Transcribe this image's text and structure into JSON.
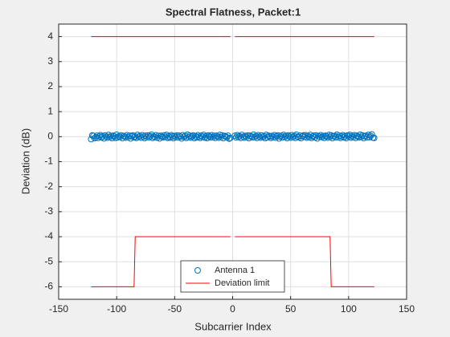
{
  "chart_data": {
    "type": "scatter",
    "title": "Spectral Flatness, Packet:1",
    "x_label": "Subcarrier Index",
    "y_label": "Deviation (dB)",
    "xlim": [
      -150,
      150
    ],
    "xticks": [
      -150,
      -100,
      -50,
      0,
      50,
      100,
      150
    ],
    "ylim": [
      -6.5,
      4.5
    ],
    "yticks": [
      -6,
      -5,
      -4,
      -3,
      -2,
      -1,
      0,
      1,
      2,
      3,
      4
    ],
    "grid": true,
    "legend_location": "south",
    "series": [
      {
        "name": "Antenna 1",
        "style": "marker",
        "color": "#0072bd",
        "x": [
          -122,
          -121,
          -120,
          -119,
          -118,
          -117,
          -116,
          -115,
          -114,
          -113,
          -112,
          -111,
          -110,
          -109,
          -108,
          -107,
          -106,
          -105,
          -104,
          -103,
          -102,
          -101,
          -100,
          -99,
          -98,
          -97,
          -96,
          -95,
          -94,
          -93,
          -92,
          -91,
          -90,
          -89,
          -88,
          -87,
          -86,
          -85,
          -84,
          -83,
          -82,
          -81,
          -80,
          -79,
          -78,
          -77,
          -76,
          -75,
          -74,
          -73,
          -72,
          -71,
          -70,
          -69,
          -68,
          -67,
          -66,
          -65,
          -64,
          -63,
          -62,
          -61,
          -60,
          -59,
          -58,
          -57,
          -56,
          -55,
          -54,
          -53,
          -52,
          -51,
          -50,
          -49,
          -48,
          -47,
          -46,
          -45,
          -44,
          -43,
          -42,
          -41,
          -40,
          -39,
          -38,
          -37,
          -36,
          -35,
          -34,
          -33,
          -32,
          -31,
          -30,
          -29,
          -28,
          -27,
          -26,
          -25,
          -24,
          -23,
          -22,
          -21,
          -20,
          -19,
          -18,
          -17,
          -16,
          -15,
          -14,
          -13,
          -12,
          -11,
          -10,
          -9,
          -8,
          -7,
          -6,
          -5,
          -4,
          -3,
          -2,
          2,
          3,
          4,
          5,
          6,
          7,
          8,
          9,
          10,
          11,
          12,
          13,
          14,
          15,
          16,
          17,
          18,
          19,
          20,
          21,
          22,
          23,
          24,
          25,
          26,
          27,
          28,
          29,
          30,
          31,
          32,
          33,
          34,
          35,
          36,
          37,
          38,
          39,
          40,
          41,
          42,
          43,
          44,
          45,
          46,
          47,
          48,
          49,
          50,
          51,
          52,
          53,
          54,
          55,
          56,
          57,
          58,
          59,
          60,
          61,
          62,
          63,
          64,
          65,
          66,
          67,
          68,
          69,
          70,
          71,
          72,
          73,
          74,
          75,
          76,
          77,
          78,
          79,
          80,
          81,
          82,
          83,
          84,
          85,
          86,
          87,
          88,
          89,
          90,
          91,
          92,
          93,
          94,
          95,
          96,
          97,
          98,
          99,
          100,
          101,
          102,
          103,
          104,
          105,
          106,
          107,
          108,
          109,
          110,
          111,
          112,
          113,
          114,
          115,
          116,
          117,
          118,
          119,
          120,
          121,
          122
        ],
        "values": [
          -0.1,
          0.05,
          0.03,
          -0.06,
          -0.02,
          0.04,
          -0.05,
          0.01,
          0.06,
          -0.03,
          0.02,
          -0.07,
          0.05,
          0.0,
          -0.04,
          0.07,
          -0.02,
          0.03,
          -0.06,
          0.04,
          0.01,
          -0.05,
          0.08,
          -0.03,
          0.02,
          -0.01,
          0.05,
          -0.06,
          0.03,
          0.0,
          -0.04,
          0.06,
          -0.02,
          0.04,
          -0.07,
          0.02,
          0.05,
          -0.03,
          0.01,
          -0.05,
          0.07,
          -0.01,
          0.03,
          -0.04,
          0.06,
          0.0,
          -0.06,
          0.04,
          -0.02,
          0.05,
          -0.03,
          0.02,
          0.08,
          -0.05,
          0.01,
          -0.02,
          0.06,
          -0.04,
          0.03,
          -0.07,
          0.04,
          0.0,
          -0.03,
          0.05,
          -0.01,
          0.07,
          -0.05,
          0.02,
          -0.04,
          0.06,
          0.01,
          -0.06,
          0.03,
          -0.02,
          0.05,
          -0.03,
          0.04,
          0.0,
          -0.07,
          0.06,
          -0.01,
          0.03,
          -0.05,
          0.08,
          -0.02,
          0.04,
          -0.04,
          0.01,
          0.05,
          -0.06,
          0.02,
          -0.03,
          0.06,
          0.0,
          -0.05,
          0.04,
          -0.01,
          0.07,
          -0.04,
          0.02,
          -0.06,
          0.05,
          0.01,
          -0.03,
          0.06,
          -0.02,
          0.03,
          -0.05,
          0.04,
          0.0,
          -0.04,
          0.07,
          -0.02,
          0.05,
          -0.06,
          0.03,
          0.01,
          -0.03,
          0.04,
          -0.08,
          -0.05,
          0.04,
          -0.03,
          0.06,
          -0.01,
          0.02,
          -0.05,
          0.07,
          0.0,
          -0.04,
          0.03,
          -0.02,
          0.05,
          -0.06,
          0.04,
          0.01,
          -0.03,
          0.08,
          -0.02,
          0.03,
          -0.05,
          0.06,
          0.0,
          -0.04,
          0.05,
          -0.01,
          0.02,
          -0.06,
          0.07,
          -0.03,
          0.04,
          0.01,
          -0.05,
          0.03,
          -0.02,
          0.06,
          -0.04,
          0.02,
          0.05,
          -0.07,
          0.0,
          0.04,
          -0.03,
          0.07,
          -0.01,
          0.03,
          -0.06,
          0.05,
          0.01,
          -0.04,
          0.06,
          -0.02,
          0.03,
          -0.05,
          0.08,
          0.0,
          -0.03,
          0.04,
          -0.06,
          0.02,
          0.05,
          -0.01,
          0.06,
          -0.04,
          0.03,
          -0.02,
          0.07,
          -0.05,
          0.01,
          0.04,
          -0.03,
          0.05,
          -0.07,
          0.02,
          0.0,
          0.06,
          -0.02,
          0.03,
          -0.05,
          0.04,
          0.01,
          -0.04,
          0.07,
          -0.01,
          0.05,
          -0.06,
          0.02,
          0.03,
          -0.03,
          0.08,
          -0.02,
          0.04,
          -0.05,
          0.01,
          0.06,
          -0.03,
          0.02,
          -0.06,
          0.05,
          0.0,
          0.07,
          -0.04,
          0.03,
          -0.02,
          0.06,
          -0.05,
          0.04,
          0.01,
          -0.03,
          0.08,
          -0.01,
          0.05,
          -0.06,
          0.02,
          0.04,
          -0.03,
          0.07,
          -0.02,
          0.03,
          0.09,
          -0.04,
          -0.05
        ]
      },
      {
        "name": "Deviation limit",
        "style": "line",
        "color": "#ff0000",
        "x": [
          -122,
          -2,
          null,
          2,
          122,
          null,
          -122,
          -85,
          -84,
          -2,
          null,
          2,
          84,
          85,
          122
        ],
        "values": [
          4,
          4,
          null,
          4,
          4,
          null,
          -6,
          -6,
          -4,
          -4,
          null,
          -4,
          -4,
          -6,
          -6
        ]
      }
    ]
  }
}
